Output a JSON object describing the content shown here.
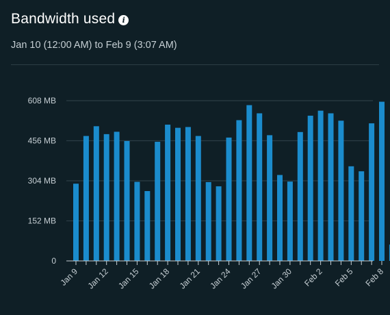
{
  "header": {
    "title": "Bandwidth used",
    "info_icon": "info-icon",
    "subtitle": "Jan 10 (12:00 AM) to Feb 9 (3:07 AM)"
  },
  "colors": {
    "background": "#0f1f26",
    "bar": "#1b8ccd",
    "grid": "#2c3d45",
    "text": "#c5ced3"
  },
  "chart_data": {
    "type": "bar",
    "title": "",
    "xlabel": "",
    "ylabel": "",
    "grid": true,
    "ylim": [
      0,
      608
    ],
    "yticks": [
      0,
      152,
      304,
      456,
      608
    ],
    "ytick_labels": [
      "0",
      "152 MB",
      "304 MB",
      "456 MB",
      "608 MB"
    ],
    "x_tick_labels": [
      {
        "index": 0,
        "label": "Jan 9"
      },
      {
        "index": 3,
        "label": "Jan 12"
      },
      {
        "index": 6,
        "label": "Jan 15"
      },
      {
        "index": 9,
        "label": "Jan 18"
      },
      {
        "index": 12,
        "label": "Jan 21"
      },
      {
        "index": 15,
        "label": "Jan 24"
      },
      {
        "index": 18,
        "label": "Jan 27"
      },
      {
        "index": 21,
        "label": "Jan 30"
      },
      {
        "index": 24,
        "label": "Feb 2"
      },
      {
        "index": 27,
        "label": "Feb 5"
      },
      {
        "index": 30,
        "label": "Feb 8"
      }
    ],
    "categories": [
      "Jan 9",
      "Jan 10",
      "Jan 11",
      "Jan 12",
      "Jan 13",
      "Jan 14",
      "Jan 15",
      "Jan 16",
      "Jan 17",
      "Jan 18",
      "Jan 19",
      "Jan 20",
      "Jan 21",
      "Jan 22",
      "Jan 23",
      "Jan 24",
      "Jan 25",
      "Jan 26",
      "Jan 27",
      "Jan 28",
      "Jan 29",
      "Jan 30",
      "Jan 31",
      "Feb 1",
      "Feb 2",
      "Feb 3",
      "Feb 4",
      "Feb 5",
      "Feb 6",
      "Feb 7",
      "Feb 8",
      "Feb 9"
    ],
    "values": [
      293,
      474,
      511,
      481,
      490,
      455,
      300,
      265,
      452,
      517,
      505,
      508,
      474,
      299,
      283,
      468,
      534,
      591,
      560,
      477,
      326,
      301,
      489,
      551,
      570,
      560,
      532,
      359,
      340,
      522,
      604,
      62
    ]
  }
}
